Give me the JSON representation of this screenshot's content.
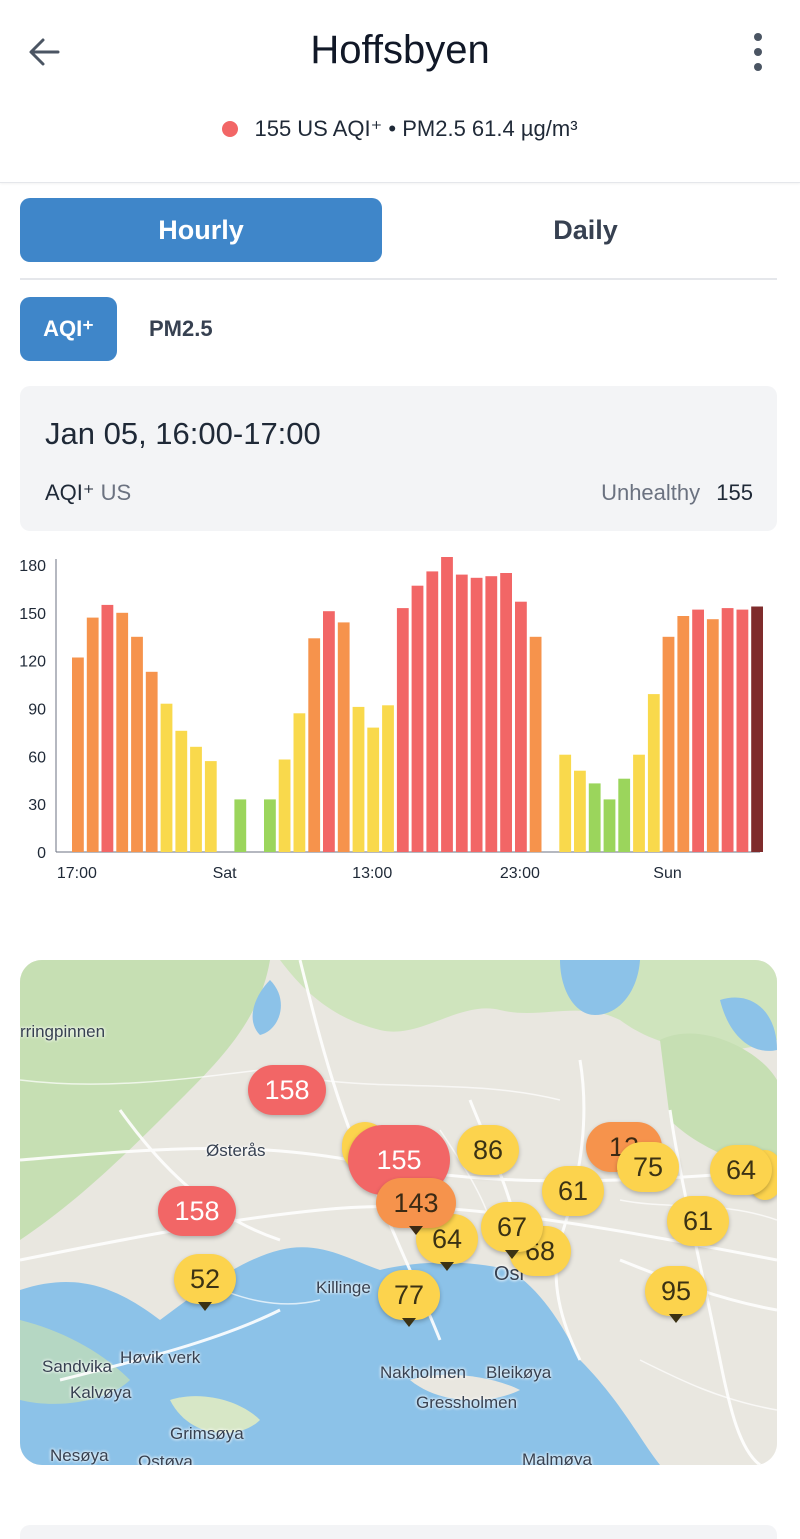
{
  "header": {
    "title": "Hoffsbyen",
    "status": {
      "aqi": "155 US AQI⁺",
      "separator": "•",
      "pm": "PM2.5 61.4 µg/m³",
      "dot_color": "#f26666"
    }
  },
  "tabs": [
    {
      "label": "Hourly",
      "active": true
    },
    {
      "label": "Daily",
      "active": false
    }
  ],
  "pollutant_pills": [
    {
      "label": "AQI⁺",
      "active": true
    },
    {
      "label": "PM2.5",
      "active": false
    }
  ],
  "summary_card": {
    "date": "Jan 05, 16:00-17:00",
    "metric_label": "AQI⁺",
    "metric_unit": "US",
    "category": "Unhealthy",
    "value": "155"
  },
  "chart_data": {
    "type": "bar",
    "ylim": [
      0,
      180
    ],
    "yticks": [
      "0",
      "30",
      "60",
      "90",
      "120",
      "150",
      "180"
    ],
    "xtick_labels": [
      {
        "index": 0,
        "label": "17:00"
      },
      {
        "index": 10,
        "label": "Sat"
      },
      {
        "index": 20,
        "label": "13:00"
      },
      {
        "index": 30,
        "label": "23:00"
      },
      {
        "index": 40,
        "label": "Sun"
      }
    ],
    "values": [
      122,
      147,
      155,
      150,
      135,
      113,
      93,
      76,
      66,
      57,
      null,
      33,
      null,
      33,
      58,
      87,
      134,
      151,
      144,
      91,
      78,
      92,
      153,
      167,
      176,
      185,
      174,
      172,
      173,
      175,
      157,
      135,
      null,
      61,
      51,
      43,
      33,
      46,
      61,
      99,
      135,
      148,
      152,
      146,
      153,
      152,
      154
    ],
    "colors": {
      "green": "#9bd55c",
      "yellow": "#f9d94c",
      "orange": "#f6934c",
      "red": "#f26666",
      "maroon": "#7f2c2c"
    }
  },
  "map": {
    "markers": [
      {
        "value": "158",
        "level": "red"
      },
      {
        "value": "155",
        "level": "red"
      },
      {
        "value": "158",
        "level": "red"
      },
      {
        "value": "143",
        "level": "orange"
      },
      {
        "value": "12",
        "level": "orange"
      },
      {
        "value": "86",
        "level": "yellow"
      },
      {
        "value": "61",
        "level": "yellow"
      },
      {
        "value": "75",
        "level": "yellow"
      },
      {
        "value": "64",
        "level": "yellow"
      },
      {
        "value": "64",
        "level": "yellow"
      },
      {
        "value": "67",
        "level": "yellow"
      },
      {
        "value": "68",
        "level": "yellow"
      },
      {
        "value": "61",
        "level": "yellow"
      },
      {
        "value": "52",
        "level": "yellow"
      },
      {
        "value": "77",
        "level": "yellow"
      },
      {
        "value": "95",
        "level": "yellow"
      }
    ],
    "labels": [
      "rringpinnen",
      "Østerås",
      "Killinge",
      "Osl",
      "Sandvika",
      "Høvik verk",
      "Kalvøya",
      "Nakholmen",
      "Bleikøya",
      "Gressholmen",
      "Grimsøya",
      "Nesøya",
      "Ostøya",
      "Malmøya"
    ]
  }
}
